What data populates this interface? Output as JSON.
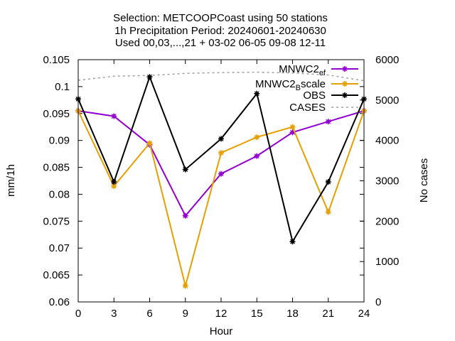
{
  "chart_data": {
    "type": "line",
    "title_lines": [
      "Selection: METCOOPCoast using    50 stations",
      "1h Precipitation   Period: 20240601-20240630",
      "Used 00,03,...,21 + 03-02 06-05 09-08 12-11"
    ],
    "xlabel": "Hour",
    "ylabel": "mm/1h",
    "y2label": "No cases",
    "x": [
      0,
      3,
      6,
      9,
      12,
      15,
      18,
      21,
      24
    ],
    "xticks": [
      "0",
      "3",
      "6",
      "9",
      "12",
      "15",
      "18",
      "21",
      "24"
    ],
    "xlim": [
      0,
      24
    ],
    "ylim": [
      0.06,
      0.105
    ],
    "yticks": [
      "0.06",
      "0.065",
      "0.07",
      "0.075",
      "0.08",
      "0.085",
      "0.09",
      "0.095",
      "0.1",
      "0.105"
    ],
    "y2lim": [
      0,
      6000
    ],
    "y2ticks": [
      "0",
      "1000",
      "2000",
      "3000",
      "4000",
      "5000",
      "6000"
    ],
    "legend_position": "top-right",
    "series": [
      {
        "name": "MNWC2_ef",
        "legend_main": "MNWC2",
        "legend_sub": "ef",
        "color": "#9400d3",
        "axis": "y",
        "values": [
          0.0955,
          0.0945,
          0.0892,
          0.076,
          0.0838,
          0.0871,
          0.0915,
          0.0935,
          0.0955
        ]
      },
      {
        "name": "MNWC2_Bscale",
        "legend_main": "MNWC2",
        "legend_sub": "B",
        "legend_tail": "scale",
        "color": "#e69f00",
        "axis": "y",
        "values": [
          0.0955,
          0.0815,
          0.0895,
          0.063,
          0.0877,
          0.0906,
          0.0925,
          0.0767,
          0.0955
        ]
      },
      {
        "name": "OBS",
        "color": "#000000",
        "axis": "y",
        "values": [
          0.0977,
          0.0823,
          0.1018,
          0.0846,
          0.0903,
          0.0987,
          0.0712,
          0.0823,
          0.0977
        ]
      },
      {
        "name": "CASES",
        "color": "#a0a0a0",
        "axis": "y2",
        "dashed": true,
        "values": [
          5490,
          5590,
          5610,
          5660,
          5680,
          5690,
          5670,
          5620,
          5480
        ]
      }
    ]
  }
}
